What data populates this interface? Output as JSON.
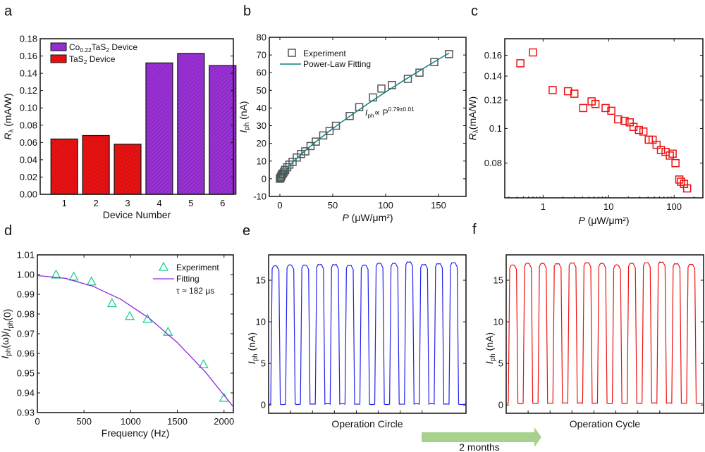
{
  "panel_labels": [
    "a",
    "b",
    "c",
    "d",
    "e",
    "f"
  ],
  "arrow": {
    "label": "2 months",
    "color": "#a9d18e"
  },
  "chart_data": [
    {
      "id": "a",
      "type": "bar",
      "categories": [
        "1",
        "2",
        "3",
        "4",
        "5",
        "6"
      ],
      "values": [
        0.064,
        0.068,
        0.058,
        0.152,
        0.163,
        0.149
      ],
      "series_of_bar": [
        "TaS2 Device",
        "TaS2 Device",
        "TaS2 Device",
        "Co0.22TaS2 Device",
        "Co0.22TaS2 Device",
        "Co0.22TaS2 Device"
      ],
      "colors": {
        "TaS2 Device": "#ee1111",
        "Co0.22TaS2 Device": "#9b30d9"
      },
      "legend": [
        {
          "main": "Co",
          "sub": "0.22",
          "main2": "TaS",
          "sub2": "2",
          "rest": " Device"
        },
        {
          "main": "TaS",
          "sub": "2",
          "main2": "",
          "sub2": "",
          "rest": " Device"
        }
      ],
      "xlabel": "Device Number",
      "ylabel": {
        "main": "R",
        "sub": "λ",
        "rest": " (mA/W)"
      },
      "ylim": [
        0,
        0.18
      ],
      "yticks": [
        "0.00",
        "0.02",
        "0.04",
        "0.06",
        "0.08",
        "0.10",
        "0.12",
        "0.14",
        "0.16",
        "0.18"
      ],
      "legend_position": "top-left"
    },
    {
      "id": "b",
      "type": "scatter",
      "xlim": [
        -10,
        176
      ],
      "ylim": [
        -10,
        80
      ],
      "xticks": [
        0,
        50,
        100,
        150
      ],
      "yticks": [
        -10,
        0,
        10,
        20,
        30,
        40,
        50,
        60,
        70,
        80
      ],
      "xlabel": {
        "main": "P",
        "rest": " (μW/μm²)"
      },
      "ylabel": {
        "main": "I",
        "sub": "ph",
        "rest": " (nA)"
      },
      "series": [
        {
          "name": "Experiment",
          "marker": "square",
          "color": "#555555",
          "x": [
            0,
            0.5,
            1,
            1.5,
            2,
            3,
            4,
            5,
            7,
            9,
            12,
            16,
            20,
            24,
            29,
            34,
            41,
            47,
            53,
            66,
            75,
            88,
            96,
            106,
            121,
            132,
            146,
            160
          ],
          "y": [
            0,
            0.5,
            1,
            1.8,
            2.5,
            3,
            4,
            5,
            6.5,
            8,
            9.5,
            12,
            14,
            15.5,
            18.5,
            21,
            24.5,
            27,
            30,
            35.5,
            40.5,
            46,
            51,
            53,
            56.5,
            60,
            66,
            70.5
          ]
        },
        {
          "name": "Power-Law Fitting",
          "type": "line",
          "color": "#0f8080",
          "coef": 1.29,
          "exponent": 0.79,
          "x_range": [
            0,
            160
          ]
        }
      ],
      "annotation": {
        "main": "I",
        "sub": "ph",
        "mid": "∝ P",
        "sup": "0.79±0.01"
      },
      "legend_position": "top-left"
    },
    {
      "id": "c",
      "type": "scatter",
      "xscale": "log",
      "yscale": "log",
      "xlim": [
        0.26,
        275
      ],
      "ylim": [
        0.064,
        0.178
      ],
      "xticks": [
        1,
        10,
        100
      ],
      "yticks": [
        0.08,
        0.1,
        0.12,
        0.14,
        0.16
      ],
      "ytick_labels": [
        "0.08",
        "0.1",
        "0.12",
        "0.14",
        "0.16"
      ],
      "xlabel": {
        "main": "P",
        "rest": " (μW/μm²)"
      },
      "ylabel": {
        "main": "R",
        "sub": "λ",
        "rest": "(mA/W)"
      },
      "series": [
        {
          "name": "Rλ",
          "marker": "square",
          "color": "#ee1111",
          "x": [
            0.45,
            0.7,
            1.4,
            2.4,
            3,
            4.1,
            5.5,
            6.3,
            9,
            11,
            14,
            17.5,
            21,
            24,
            29,
            34,
            41,
            47,
            54,
            63,
            74,
            86,
            95,
            105,
            120,
            128,
            142,
            158
          ],
          "y": [
            0.152,
            0.163,
            0.128,
            0.127,
            0.125,
            0.114,
            0.119,
            0.117,
            0.114,
            0.112,
            0.106,
            0.105,
            0.104,
            0.101,
            0.099,
            0.098,
            0.093,
            0.093,
            0.09,
            0.087,
            0.086,
            0.084,
            0.085,
            0.08,
            0.072,
            0.071,
            0.07,
            0.068
          ]
        }
      ]
    },
    {
      "id": "d",
      "type": "scatter",
      "xlim": [
        0,
        2100
      ],
      "ylim": [
        0.93,
        1.01
      ],
      "xticks": [
        0,
        500,
        1000,
        1500,
        2000
      ],
      "yticks": [
        "0.93",
        "0.94",
        "0.95",
        "0.96",
        "0.97",
        "0.98",
        "0.99",
        "1.00",
        "1.01"
      ],
      "xlabel": "Frequency (Hz)",
      "ylabel": {
        "main": "I",
        "sub": "ph",
        "rest": "(ω)/",
        "main2": "I",
        "sub2": "ph",
        "rest2": "(0)"
      },
      "series": [
        {
          "name": "Experiment",
          "marker": "triangle",
          "color": "#1fcf8f",
          "x": [
            200,
            390,
            580,
            800,
            990,
            1180,
            1400,
            1780,
            2000
          ],
          "y": [
            1.0,
            0.999,
            0.9965,
            0.9855,
            0.979,
            0.9775,
            0.971,
            0.9545,
            0.9375
          ]
        },
        {
          "name": "Fitting",
          "type": "line",
          "color": "#8a2be2",
          "x": [
            0,
            300,
            600,
            900,
            1200,
            1500,
            1800,
            2100
          ],
          "y": [
            0.9995,
            0.9981,
            0.994,
            0.9873,
            0.9778,
            0.9655,
            0.9506,
            0.9329
          ]
        }
      ],
      "annotation": "τ ≈ 182 μs",
      "legend_position": "top-right"
    },
    {
      "id": "e",
      "type": "line",
      "ylim": [
        -1,
        18.05
      ],
      "yticks": [
        0,
        5,
        10,
        15
      ],
      "xlabel": "Operation Circle",
      "ylabel": {
        "main": "I",
        "sub": "ph",
        "rest": " (nA)"
      },
      "color": "#2222ee",
      "pulse_high": [
        16.7,
        16.8,
        16.8,
        16.9,
        16.9,
        16.8,
        16.8,
        17.0,
        17.0,
        17.2,
        16.9,
        17.0,
        17.1
      ],
      "pulse_low": 0.1
    },
    {
      "id": "f",
      "type": "line",
      "ylim": [
        -1,
        18.05
      ],
      "yticks": [
        0,
        5,
        10,
        15
      ],
      "xlabel": "Operation Cycle",
      "ylabel": {
        "main": "I",
        "sub": "ph",
        "rest": " (nA)"
      },
      "color": "#ee1111",
      "pulse_high": [
        16.8,
        17.0,
        17.0,
        17.0,
        17.1,
        17.1,
        17.0,
        16.8,
        17.0,
        17.1,
        17.2,
        17.0,
        16.9
      ],
      "pulse_low": 0.2
    }
  ]
}
